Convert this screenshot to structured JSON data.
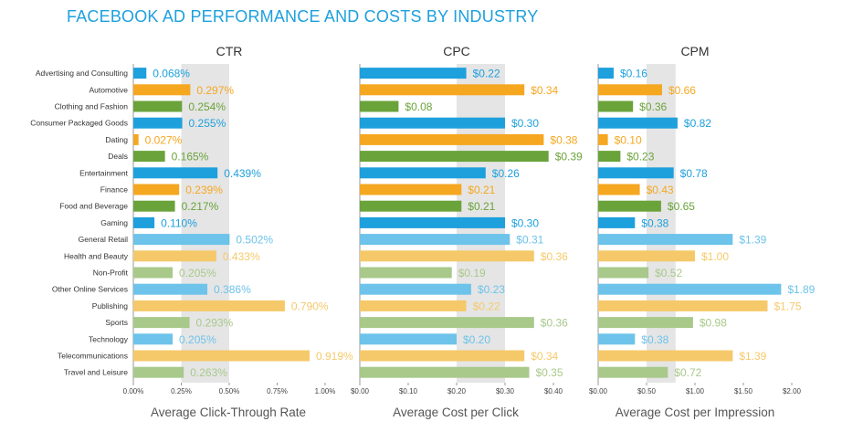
{
  "title": "FACEBOOK AD PERFORMANCE AND COSTS BY INDUSTRY",
  "colors": {
    "blue": "#1ea0dd",
    "orange": "#f5a720",
    "green": "#6aa33a",
    "light_blue": "#6dc3ea",
    "light_orange": "#f5c96a",
    "light_green": "#a8c98a",
    "shade": "#e5e5e5",
    "label_text": "#333333",
    "axis_text": "#444444",
    "xlabel_text": "#555555"
  },
  "chart_data": [
    {
      "type": "bar",
      "orientation": "horizontal",
      "title": "CTR",
      "xlabel": "Average Click-Through Rate",
      "xlim": [
        0,
        1.0
      ],
      "xticks": [
        "0.00%",
        "0.25%",
        "0.50%",
        "0.75%",
        "1.00%"
      ],
      "shaded_range": [
        0.25,
        0.5
      ],
      "categories": [
        "Advertising and Consulting",
        "Automotive",
        "Clothing and Fashion",
        "Consumer Packaged Goods",
        "Dating",
        "Deals",
        "Entertainment",
        "Finance",
        "Food and Beverage",
        "Gaming",
        "General Retail",
        "Health and Beauty",
        "Non-Profit",
        "Other Online Services",
        "Publishing",
        "Sports",
        "Technology",
        "Telecommunications",
        "Travel and Leisure"
      ],
      "values": [
        0.068,
        0.297,
        0.254,
        0.255,
        0.027,
        0.165,
        0.439,
        0.239,
        0.217,
        0.11,
        0.502,
        0.433,
        0.205,
        0.386,
        0.79,
        0.293,
        0.205,
        0.919,
        0.263
      ],
      "labels": [
        "0.068%",
        "0.297%",
        "0.254%",
        "0.255%",
        "0.027%",
        "0.165%",
        "0.439%",
        "0.239%",
        "0.217%",
        "0.110%",
        "0.502%",
        "0.433%",
        "0.205%",
        "0.386%",
        "0.790%",
        "0.293%",
        "0.205%",
        "0.919%",
        "0.263%"
      ]
    },
    {
      "type": "bar",
      "orientation": "horizontal",
      "title": "CPC",
      "xlabel": "Average Cost per Click",
      "xlim": [
        0,
        0.4
      ],
      "xticks": [
        "$0.00",
        "$0.10",
        "$0.20",
        "$0.30",
        "$0.40"
      ],
      "shaded_range": [
        0.2,
        0.3
      ],
      "categories": [
        "Advertising and Consulting",
        "Automotive",
        "Clothing and Fashion",
        "Consumer Packaged Goods",
        "Dating",
        "Deals",
        "Entertainment",
        "Finance",
        "Food and Beverage",
        "Gaming",
        "General Retail",
        "Health and Beauty",
        "Non-Profit",
        "Other Online Services",
        "Publishing",
        "Sports",
        "Technology",
        "Telecommunications",
        "Travel and Leisure"
      ],
      "values": [
        0.22,
        0.34,
        0.08,
        0.3,
        0.38,
        0.39,
        0.26,
        0.21,
        0.21,
        0.3,
        0.31,
        0.36,
        0.19,
        0.23,
        0.22,
        0.36,
        0.2,
        0.34,
        0.35
      ],
      "labels": [
        "$0.22",
        "$0.34",
        "$0.08",
        "$0.30",
        "$0.38",
        "$0.39",
        "$0.26",
        "$0.21",
        "$0.21",
        "$0.30",
        "$0.31",
        "$0.36",
        "$0.19",
        "$0.23",
        "$0.22",
        "$0.36",
        "$0.20",
        "$0.34",
        "$0.35"
      ]
    },
    {
      "type": "bar",
      "orientation": "horizontal",
      "title": "CPM",
      "xlabel": "Average Cost per Impression",
      "xlim": [
        0,
        2.0
      ],
      "xticks": [
        "$0.00",
        "$0.50",
        "$1.00",
        "$1.50",
        "$2.00"
      ],
      "shaded_range": [
        0.5,
        0.8
      ],
      "categories": [
        "Advertising and Consulting",
        "Automotive",
        "Clothing and Fashion",
        "Consumer Packaged Goods",
        "Dating",
        "Deals",
        "Entertainment",
        "Finance",
        "Food and Beverage",
        "Gaming",
        "General Retail",
        "Health and Beauty",
        "Non-Profit",
        "Other Online Services",
        "Publishing",
        "Sports",
        "Technology",
        "Telecommunications",
        "Travel and Leisure"
      ],
      "values": [
        0.16,
        0.66,
        0.36,
        0.82,
        0.1,
        0.23,
        0.78,
        0.43,
        0.65,
        0.38,
        1.39,
        1.0,
        0.52,
        1.89,
        1.75,
        0.98,
        0.38,
        1.39,
        0.72
      ],
      "labels": [
        "$0.16",
        "$0.66",
        "$0.36",
        "$0.82",
        "$0.10",
        "$0.23",
        "$0.78",
        "$0.43",
        "$0.65",
        "$0.38",
        "$1.39",
        "$1.00",
        "$0.52",
        "$1.89",
        "$1.75",
        "$0.98",
        "$0.38",
        "$1.39",
        "$0.72"
      ]
    }
  ]
}
